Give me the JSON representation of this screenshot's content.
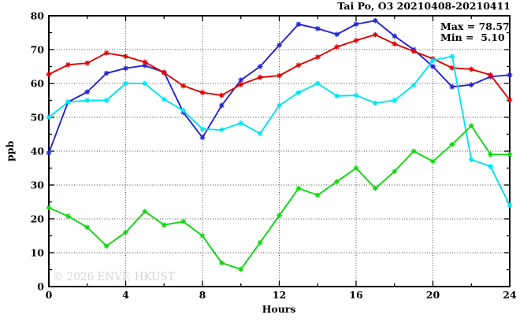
{
  "title": "Tai Po, O3 20210408-20210411",
  "annotation": {
    "max_label": "Max = 78.57",
    "min_label": "Min =  5.10"
  },
  "watermark": "© 2026 ENVF, HKUST",
  "axes": {
    "xlabel": "Hours",
    "ylabel": "ppb"
  },
  "colors": {
    "series_blue": "#2222d4",
    "series_red": "#e00000",
    "series_cyan": "#00e4ee",
    "series_green": "#0fd60f",
    "frame": "#000000",
    "grid": "#444444",
    "watermark_gray": "#d4d4d4"
  },
  "chart_data": {
    "type": "line",
    "title": "Tai Po, O3 20210408-20210411",
    "xlabel": "Hours",
    "ylabel": "ppb",
    "xlim": [
      0,
      24
    ],
    "ylim": [
      0,
      80
    ],
    "x_major_ticks": [
      0,
      4,
      8,
      12,
      16,
      20,
      24
    ],
    "x_minor_step": 2,
    "y_major_ticks": [
      0,
      10,
      20,
      30,
      40,
      50,
      60,
      70,
      80
    ],
    "y_minor_step": 5,
    "grid": "dotted lines at major ticks, full box frame with inward ticks",
    "legend_position": "none",
    "marker": "asterisk",
    "x": [
      0,
      1,
      2,
      3,
      4,
      5,
      6,
      7,
      8,
      9,
      10,
      11,
      12,
      13,
      14,
      15,
      16,
      17,
      18,
      19,
      20,
      21,
      22,
      23,
      24
    ],
    "series": [
      {
        "name": "series-blue",
        "color": "#2222d4",
        "values": [
          39.5,
          54.5,
          57.5,
          63,
          64.5,
          65.3,
          63.3,
          51.5,
          44,
          53.5,
          61,
          65,
          71.3,
          77.5,
          76.2,
          74.5,
          77.5,
          78.57,
          74,
          70,
          65,
          59,
          59.6,
          62,
          62.5
        ]
      },
      {
        "name": "series-red",
        "color": "#e00000",
        "values": [
          62.7,
          65.5,
          66,
          69,
          68,
          66.3,
          63.2,
          59.3,
          57.3,
          56.5,
          59.7,
          61.8,
          62.3,
          65.4,
          67.8,
          70.8,
          72.7,
          74.4,
          71.7,
          69.5,
          67.3,
          64.6,
          64.2,
          62.5,
          55.1
        ]
      },
      {
        "name": "series-cyan",
        "color": "#00e4ee",
        "values": [
          50,
          54.5,
          55,
          55,
          60,
          60,
          55.3,
          52,
          46.5,
          46.3,
          48.3,
          45.2,
          53.5,
          57.3,
          60,
          56.3,
          56.5,
          54.2,
          55,
          59.5,
          66.8,
          68,
          37.5,
          35.5,
          24
        ]
      },
      {
        "name": "series-green",
        "color": "#0fd60f",
        "values": [
          23.3,
          20.8,
          17.5,
          12,
          16,
          22.2,
          18.2,
          19.2,
          15,
          7,
          5.1,
          13,
          21,
          29,
          27,
          31,
          35,
          29,
          34,
          40,
          37,
          42,
          47.5,
          39,
          39
        ]
      }
    ],
    "stats": {
      "max": 78.57,
      "min": 5.1
    }
  }
}
